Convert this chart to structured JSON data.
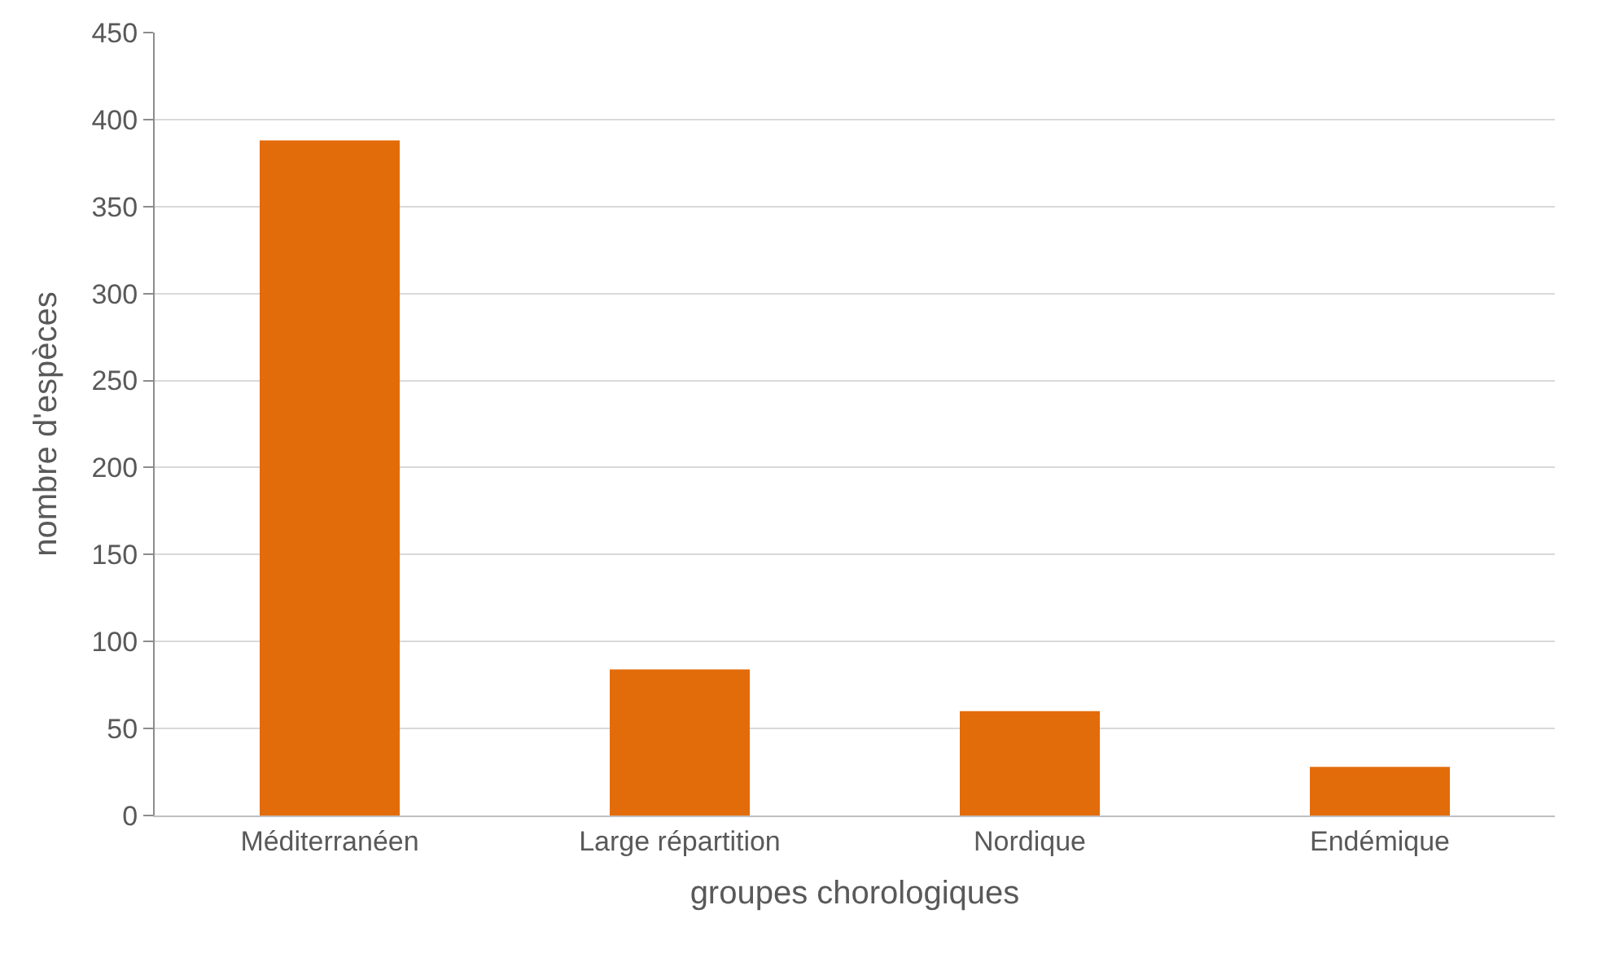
{
  "chart_data": {
    "type": "bar",
    "xlabel": "groupes chorologiques",
    "ylabel": "nombre d'espèces",
    "categories": [
      "Méditerranéen",
      "Large répartition",
      "Nordique",
      "Endémique"
    ],
    "values": [
      388,
      84,
      60,
      28
    ],
    "color": "#e36c0a",
    "ylim": [
      0,
      450
    ],
    "yticks": [
      0,
      50,
      100,
      150,
      200,
      250,
      300,
      350,
      400,
      450
    ],
    "grid": "y"
  }
}
